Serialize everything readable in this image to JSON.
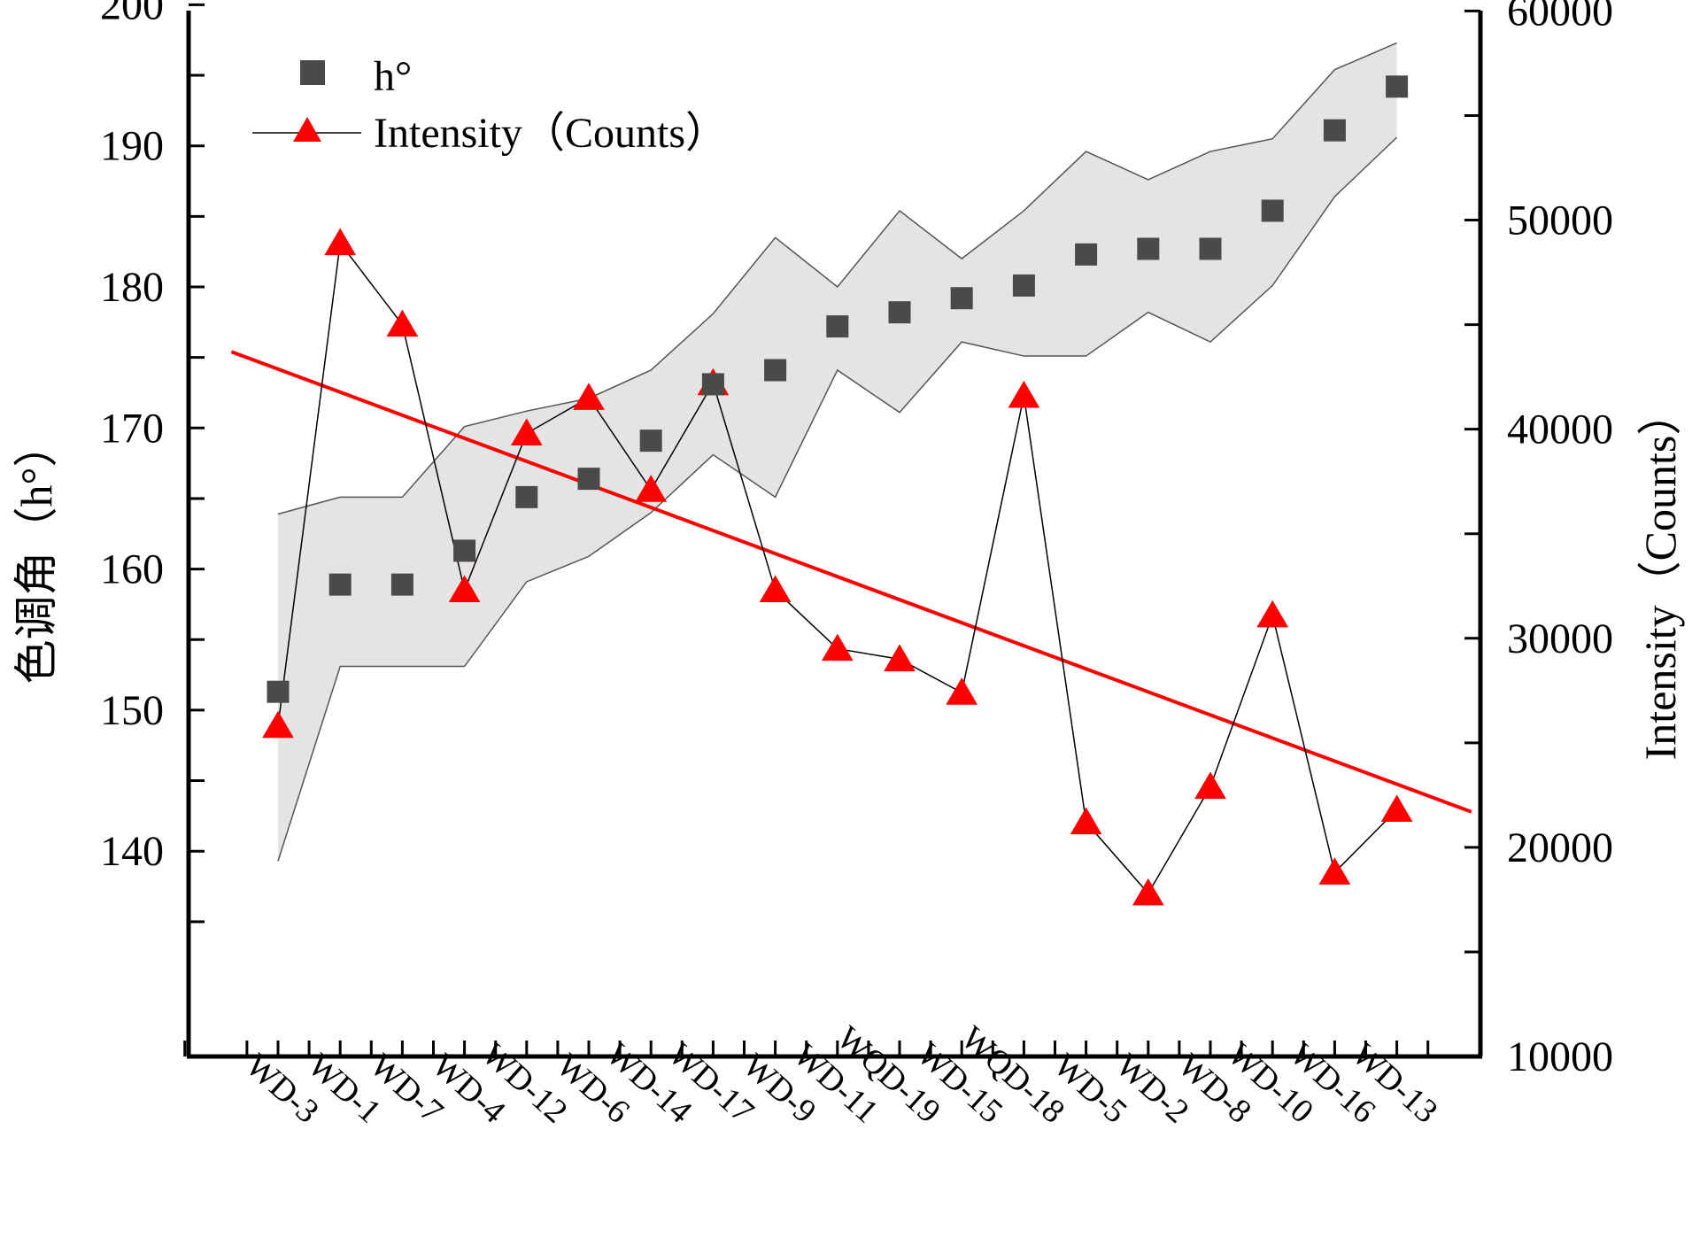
{
  "chart_data": {
    "type": "scatter",
    "categories": [
      "WD-3",
      "WD-1",
      "WD-7",
      "WD-4",
      "WD-12",
      "WD-6",
      "WD-14",
      "WD-17",
      "WD-9",
      "WD-11",
      "WQD-19",
      "WD-15",
      "WQD-18",
      "WD-5",
      "WD-2",
      "WD-8",
      "WD-10",
      "WD-16",
      "WD-13"
    ],
    "y_left": {
      "label": "色调角（h°）",
      "ticks": [
        140,
        150,
        160,
        170,
        180,
        190,
        200
      ]
    },
    "y_right": {
      "label": "Intensity（Counts）",
      "ticks": [
        10000,
        20000,
        30000,
        40000,
        50000,
        60000
      ]
    },
    "series": [
      {
        "name": "h°",
        "axis": "left",
        "marker": "square",
        "color": "#4a4a4a",
        "values": [
          151.3,
          158.9,
          158.9,
          161.3,
          165.1,
          166.4,
          169.1,
          173.1,
          174.1,
          177.2,
          178.2,
          179.2,
          180.1,
          182.3,
          182.7,
          182.7,
          185.4,
          191.1,
          194.2
        ],
        "band_upper": [
          163.9,
          165.1,
          165.1,
          170.1,
          171.2,
          172.1,
          174.1,
          178.1,
          183.5,
          180.0,
          185.4,
          182.0,
          185.4,
          189.6,
          187.6,
          189.6,
          190.5,
          195.4,
          197.3
        ],
        "band_lower": [
          139.3,
          153.1,
          153.1,
          153.1,
          159.1,
          160.9,
          164.0,
          168.1,
          165.1,
          174.1,
          171.1,
          176.1,
          175.1,
          175.1,
          178.2,
          176.1,
          180.1,
          186.4,
          190.6
        ]
      },
      {
        "name": "Intensity（Counts）",
        "axis": "right",
        "marker": "triangle",
        "color": "#ff0000",
        "values": [
          25810,
          48900,
          45000,
          32300,
          39800,
          41500,
          37100,
          42200,
          32300,
          29500,
          29000,
          27400,
          41600,
          21200,
          17800,
          22900,
          31100,
          18800,
          21800
        ]
      }
    ],
    "trendline": {
      "axis": "right",
      "color": "#ff0000",
      "start": {
        "x": -0.75,
        "y": 43700
      },
      "end": {
        "x": 19.2,
        "y": 21700
      }
    },
    "band_color": "#e4e4e4",
    "legend_placement": "top-left",
    "grid": false
  }
}
